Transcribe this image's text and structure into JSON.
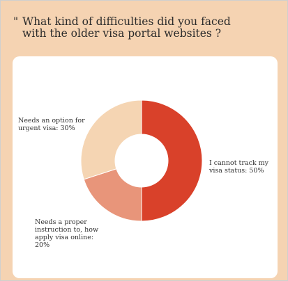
{
  "header": {
    "quote_mark": "\"",
    "title_line1": "What kind of difficulties did you faced",
    "title_line2": "with the older visa portal websites ?"
  },
  "colors": {
    "background": "#f5d3b2",
    "card": "#ffffff",
    "slice_track_status": "#d9412a",
    "slice_instruction": "#e8957a",
    "slice_urgent": "#f5d5b3"
  },
  "chart_data": {
    "type": "pie",
    "title": "What kind of difficulties did you faced with the older visa portal websites ?",
    "donut": true,
    "slices": [
      {
        "label": "I cannot track my visa status",
        "value": 50,
        "color": "#d9412a"
      },
      {
        "label": "Needs a proper instruction to, how apply visa online",
        "value": 20,
        "color": "#e8957a"
      },
      {
        "label": "Needs an option for urgent visa",
        "value": 30,
        "color": "#f5d5b3"
      }
    ],
    "labels_text": {
      "track_line1": "I cannot track my",
      "track_line2": "visa status: 50%",
      "instruction_line1": "Needs a proper",
      "instruction_line2": "instruction to, how",
      "instruction_line3": "apply visa online:",
      "instruction_line4": "20%",
      "urgent_line1": "Needs an option for",
      "urgent_line2": "urgent visa: 30%"
    }
  }
}
